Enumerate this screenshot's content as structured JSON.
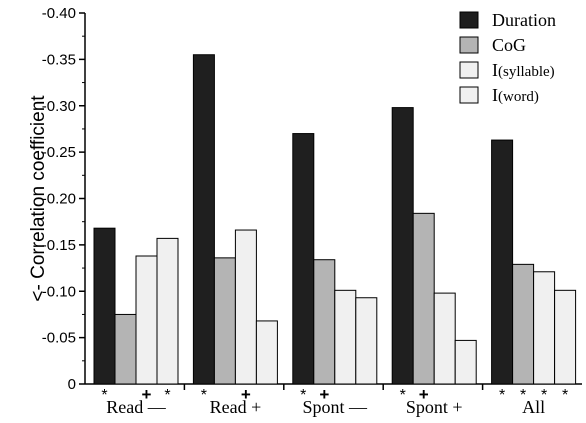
{
  "chart_data": {
    "type": "bar",
    "ylabel": "<- Correlation coefficient",
    "xlabel": "",
    "title": "",
    "ylim": [
      0,
      -0.4
    ],
    "yticks": [
      "0",
      "-0.05",
      "-0.10",
      "-0.15",
      "-0.20",
      "-0.25",
      "-0.30",
      "-0.35",
      "-0.40"
    ],
    "categories": [
      "Read —",
      "Read +",
      "Spont —",
      "Spont +",
      "All"
    ],
    "series": [
      {
        "name": "Duration",
        "color": "#1f1f1f",
        "values": [
          -0.168,
          -0.355,
          -0.27,
          -0.298,
          -0.263
        ]
      },
      {
        "name": "CoG",
        "color": "#b4b4b4",
        "values": [
          -0.075,
          -0.136,
          -0.134,
          -0.184,
          -0.129
        ]
      },
      {
        "name": "I(syllable)",
        "color": "#f0f0f0",
        "values": [
          -0.138,
          -0.166,
          -0.101,
          -0.098,
          -0.121
        ]
      },
      {
        "name": "I(word)",
        "color": "#f0f0f0",
        "values": [
          -0.157,
          -0.068,
          -0.093,
          -0.047,
          -0.101
        ]
      }
    ],
    "significance_markers": [
      [
        "*",
        "",
        "+",
        "*"
      ],
      [
        "*",
        "",
        "+",
        ""
      ],
      [
        "*",
        "+",
        "",
        ""
      ],
      [
        "*",
        "+",
        "",
        ""
      ],
      [
        "*",
        "*",
        "*",
        "*"
      ]
    ],
    "legend": {
      "placement": "top-right",
      "entries": [
        {
          "prefix": "Duration",
          "suffix": ""
        },
        {
          "prefix": "CoG",
          "suffix": ""
        },
        {
          "prefix": "I",
          "suffix": "(syllable)"
        },
        {
          "prefix": "I",
          "suffix": "(word)"
        }
      ]
    },
    "grid": false
  }
}
